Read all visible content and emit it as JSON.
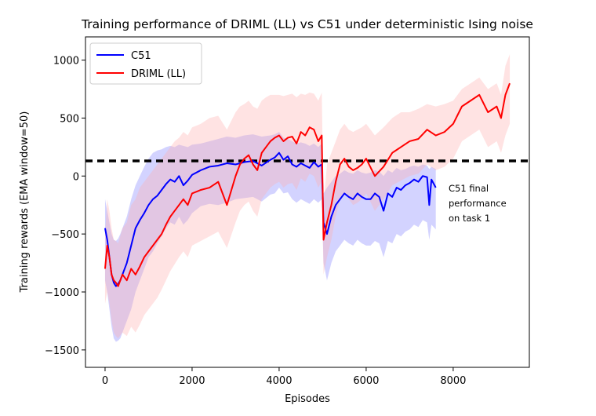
{
  "chart_data": {
    "type": "line",
    "title": "Training performance of DRIML (LL) vs C51 under deterministic Ising noise",
    "xlabel": "Episodes",
    "ylabel": "Training rewards (EMA window=50)",
    "xlim": [
      -450,
      9750
    ],
    "ylim": [
      -1650,
      1200
    ],
    "xticks": [
      0,
      2000,
      4000,
      6000,
      8000
    ],
    "yticks": [
      -1500,
      -1000,
      -500,
      0,
      500,
      1000
    ],
    "grid": false,
    "legend_position": "upper-left",
    "series": [
      {
        "name": "C51",
        "color": "#0000ff",
        "band_color": "#8080ff",
        "x": [
          0,
          50,
          100,
          150,
          200,
          250,
          300,
          350,
          400,
          500,
          600,
          700,
          800,
          900,
          1000,
          1100,
          1200,
          1300,
          1400,
          1500,
          1600,
          1700,
          1800,
          1900,
          2000,
          2200,
          2400,
          2600,
          2800,
          3000,
          3200,
          3400,
          3600,
          3800,
          3900,
          4000,
          4100,
          4200,
          4300,
          4400,
          4500,
          4600,
          4700,
          4800,
          4900,
          4980,
          5020,
          5100,
          5200,
          5300,
          5400,
          5500,
          5600,
          5700,
          5800,
          5900,
          6000,
          6100,
          6200,
          6300,
          6400,
          6500,
          6600,
          6700,
          6800,
          6900,
          7000,
          7100,
          7200,
          7300,
          7400,
          7450,
          7500,
          7600
        ],
        "y": [
          -450,
          -550,
          -700,
          -850,
          -920,
          -950,
          -930,
          -900,
          -850,
          -750,
          -600,
          -450,
          -380,
          -320,
          -250,
          -200,
          -170,
          -120,
          -70,
          -30,
          -50,
          0,
          -80,
          -40,
          10,
          50,
          80,
          90,
          110,
          100,
          120,
          130,
          90,
          140,
          160,
          200,
          140,
          170,
          100,
          80,
          110,
          90,
          70,
          120,
          80,
          100,
          -400,
          -500,
          -350,
          -250,
          -200,
          -150,
          -180,
          -200,
          -150,
          -180,
          -200,
          -200,
          -150,
          -180,
          -300,
          -150,
          -180,
          -100,
          -120,
          -80,
          -60,
          -30,
          -50,
          0,
          -10,
          -250,
          -30,
          -100
        ],
        "upper": [
          -200,
          -300,
          -400,
          -500,
          -550,
          -560,
          -540,
          -500,
          -450,
          -350,
          -200,
          -80,
          0,
          80,
          150,
          200,
          220,
          230,
          250,
          260,
          250,
          270,
          260,
          250,
          270,
          280,
          300,
          320,
          340,
          330,
          350,
          360,
          340,
          350,
          360,
          380,
          330,
          320,
          300,
          280,
          290,
          280,
          260,
          280,
          250,
          280,
          -150,
          -100,
          -50,
          0,
          20,
          50,
          30,
          20,
          50,
          30,
          20,
          30,
          50,
          40,
          0,
          50,
          30,
          70,
          50,
          60,
          80,
          90,
          80,
          100,
          90,
          60,
          80,
          60
        ],
        "lower": [
          -900,
          -1000,
          -1150,
          -1300,
          -1400,
          -1430,
          -1420,
          -1400,
          -1350,
          -1250,
          -1150,
          -1000,
          -900,
          -800,
          -700,
          -650,
          -580,
          -520,
          -450,
          -400,
          -420,
          -350,
          -420,
          -380,
          -320,
          -260,
          -240,
          -250,
          -230,
          -200,
          -190,
          -180,
          -220,
          -160,
          -150,
          -100,
          -150,
          -140,
          -200,
          -230,
          -200,
          -220,
          -240,
          -200,
          -230,
          -200,
          -750,
          -900,
          -750,
          -650,
          -600,
          -550,
          -580,
          -600,
          -550,
          -580,
          -600,
          -600,
          -560,
          -580,
          -700,
          -560,
          -580,
          -500,
          -520,
          -480,
          -460,
          -420,
          -440,
          -380,
          -400,
          -550,
          -420,
          -460
        ]
      },
      {
        "name": "DRIML (LL)",
        "color": "#ff0000",
        "band_color": "#ffb0b0",
        "x": [
          0,
          50,
          100,
          150,
          200,
          250,
          300,
          400,
          500,
          600,
          700,
          800,
          900,
          1000,
          1100,
          1200,
          1300,
          1400,
          1500,
          1600,
          1700,
          1800,
          1900,
          2000,
          2200,
          2400,
          2600,
          2800,
          3000,
          3100,
          3200,
          3300,
          3400,
          3500,
          3600,
          3700,
          3800,
          3900,
          4000,
          4100,
          4200,
          4300,
          4400,
          4500,
          4600,
          4700,
          4800,
          4900,
          4980,
          5020,
          5100,
          5200,
          5300,
          5400,
          5500,
          5600,
          5700,
          5800,
          5900,
          6000,
          6200,
          6400,
          6600,
          6800,
          7000,
          7200,
          7400,
          7600,
          7800,
          8000,
          8200,
          8400,
          8600,
          8800,
          9000,
          9100,
          9200,
          9300
        ],
        "y": [
          -800,
          -600,
          -700,
          -850,
          -900,
          -920,
          -950,
          -850,
          -900,
          -800,
          -850,
          -780,
          -700,
          -650,
          -600,
          -550,
          -500,
          -420,
          -350,
          -300,
          -250,
          -200,
          -250,
          -150,
          -120,
          -100,
          -50,
          -250,
          0,
          100,
          150,
          180,
          100,
          50,
          200,
          250,
          300,
          330,
          350,
          300,
          330,
          340,
          280,
          380,
          350,
          420,
          400,
          300,
          350,
          -550,
          -400,
          -250,
          -50,
          100,
          150,
          80,
          50,
          70,
          100,
          150,
          0,
          80,
          200,
          250,
          300,
          320,
          400,
          350,
          380,
          450,
          600,
          650,
          700,
          550,
          600,
          500,
          700,
          800
        ],
        "upper": [
          -500,
          -200,
          -300,
          -450,
          -550,
          -560,
          -580,
          -450,
          -400,
          -250,
          -200,
          -100,
          -50,
          0,
          50,
          100,
          150,
          200,
          250,
          300,
          330,
          380,
          350,
          420,
          450,
          500,
          520,
          400,
          550,
          600,
          620,
          650,
          600,
          580,
          650,
          680,
          700,
          700,
          700,
          690,
          700,
          710,
          680,
          710,
          700,
          720,
          710,
          650,
          720,
          -250,
          100,
          200,
          300,
          400,
          450,
          400,
          380,
          400,
          420,
          450,
          350,
          420,
          500,
          550,
          550,
          580,
          620,
          600,
          620,
          650,
          750,
          800,
          850,
          750,
          800,
          700,
          950,
          1050
        ],
        "lower": [
          -1100,
          -1000,
          -1100,
          -1250,
          -1350,
          -1380,
          -1400,
          -1350,
          -1380,
          -1300,
          -1350,
          -1280,
          -1200,
          -1150,
          -1100,
          -1050,
          -980,
          -900,
          -820,
          -760,
          -700,
          -650,
          -700,
          -600,
          -560,
          -520,
          -480,
          -620,
          -400,
          -300,
          -250,
          -220,
          -300,
          -350,
          -200,
          -150,
          -100,
          -70,
          -50,
          -100,
          -70,
          -60,
          -120,
          -20,
          -50,
          20,
          0,
          -100,
          -50,
          -850,
          -700,
          -550,
          -350,
          -200,
          -150,
          -200,
          -250,
          -230,
          -200,
          -150,
          -300,
          -200,
          -80,
          -40,
          0,
          20,
          100,
          50,
          80,
          150,
          300,
          350,
          400,
          250,
          300,
          200,
          350,
          450
        ]
      }
    ],
    "reference_line": {
      "y": 130,
      "style": "dashed",
      "color": "#000000"
    },
    "annotation": [
      "C51 final",
      "performance",
      "on task 1"
    ]
  }
}
